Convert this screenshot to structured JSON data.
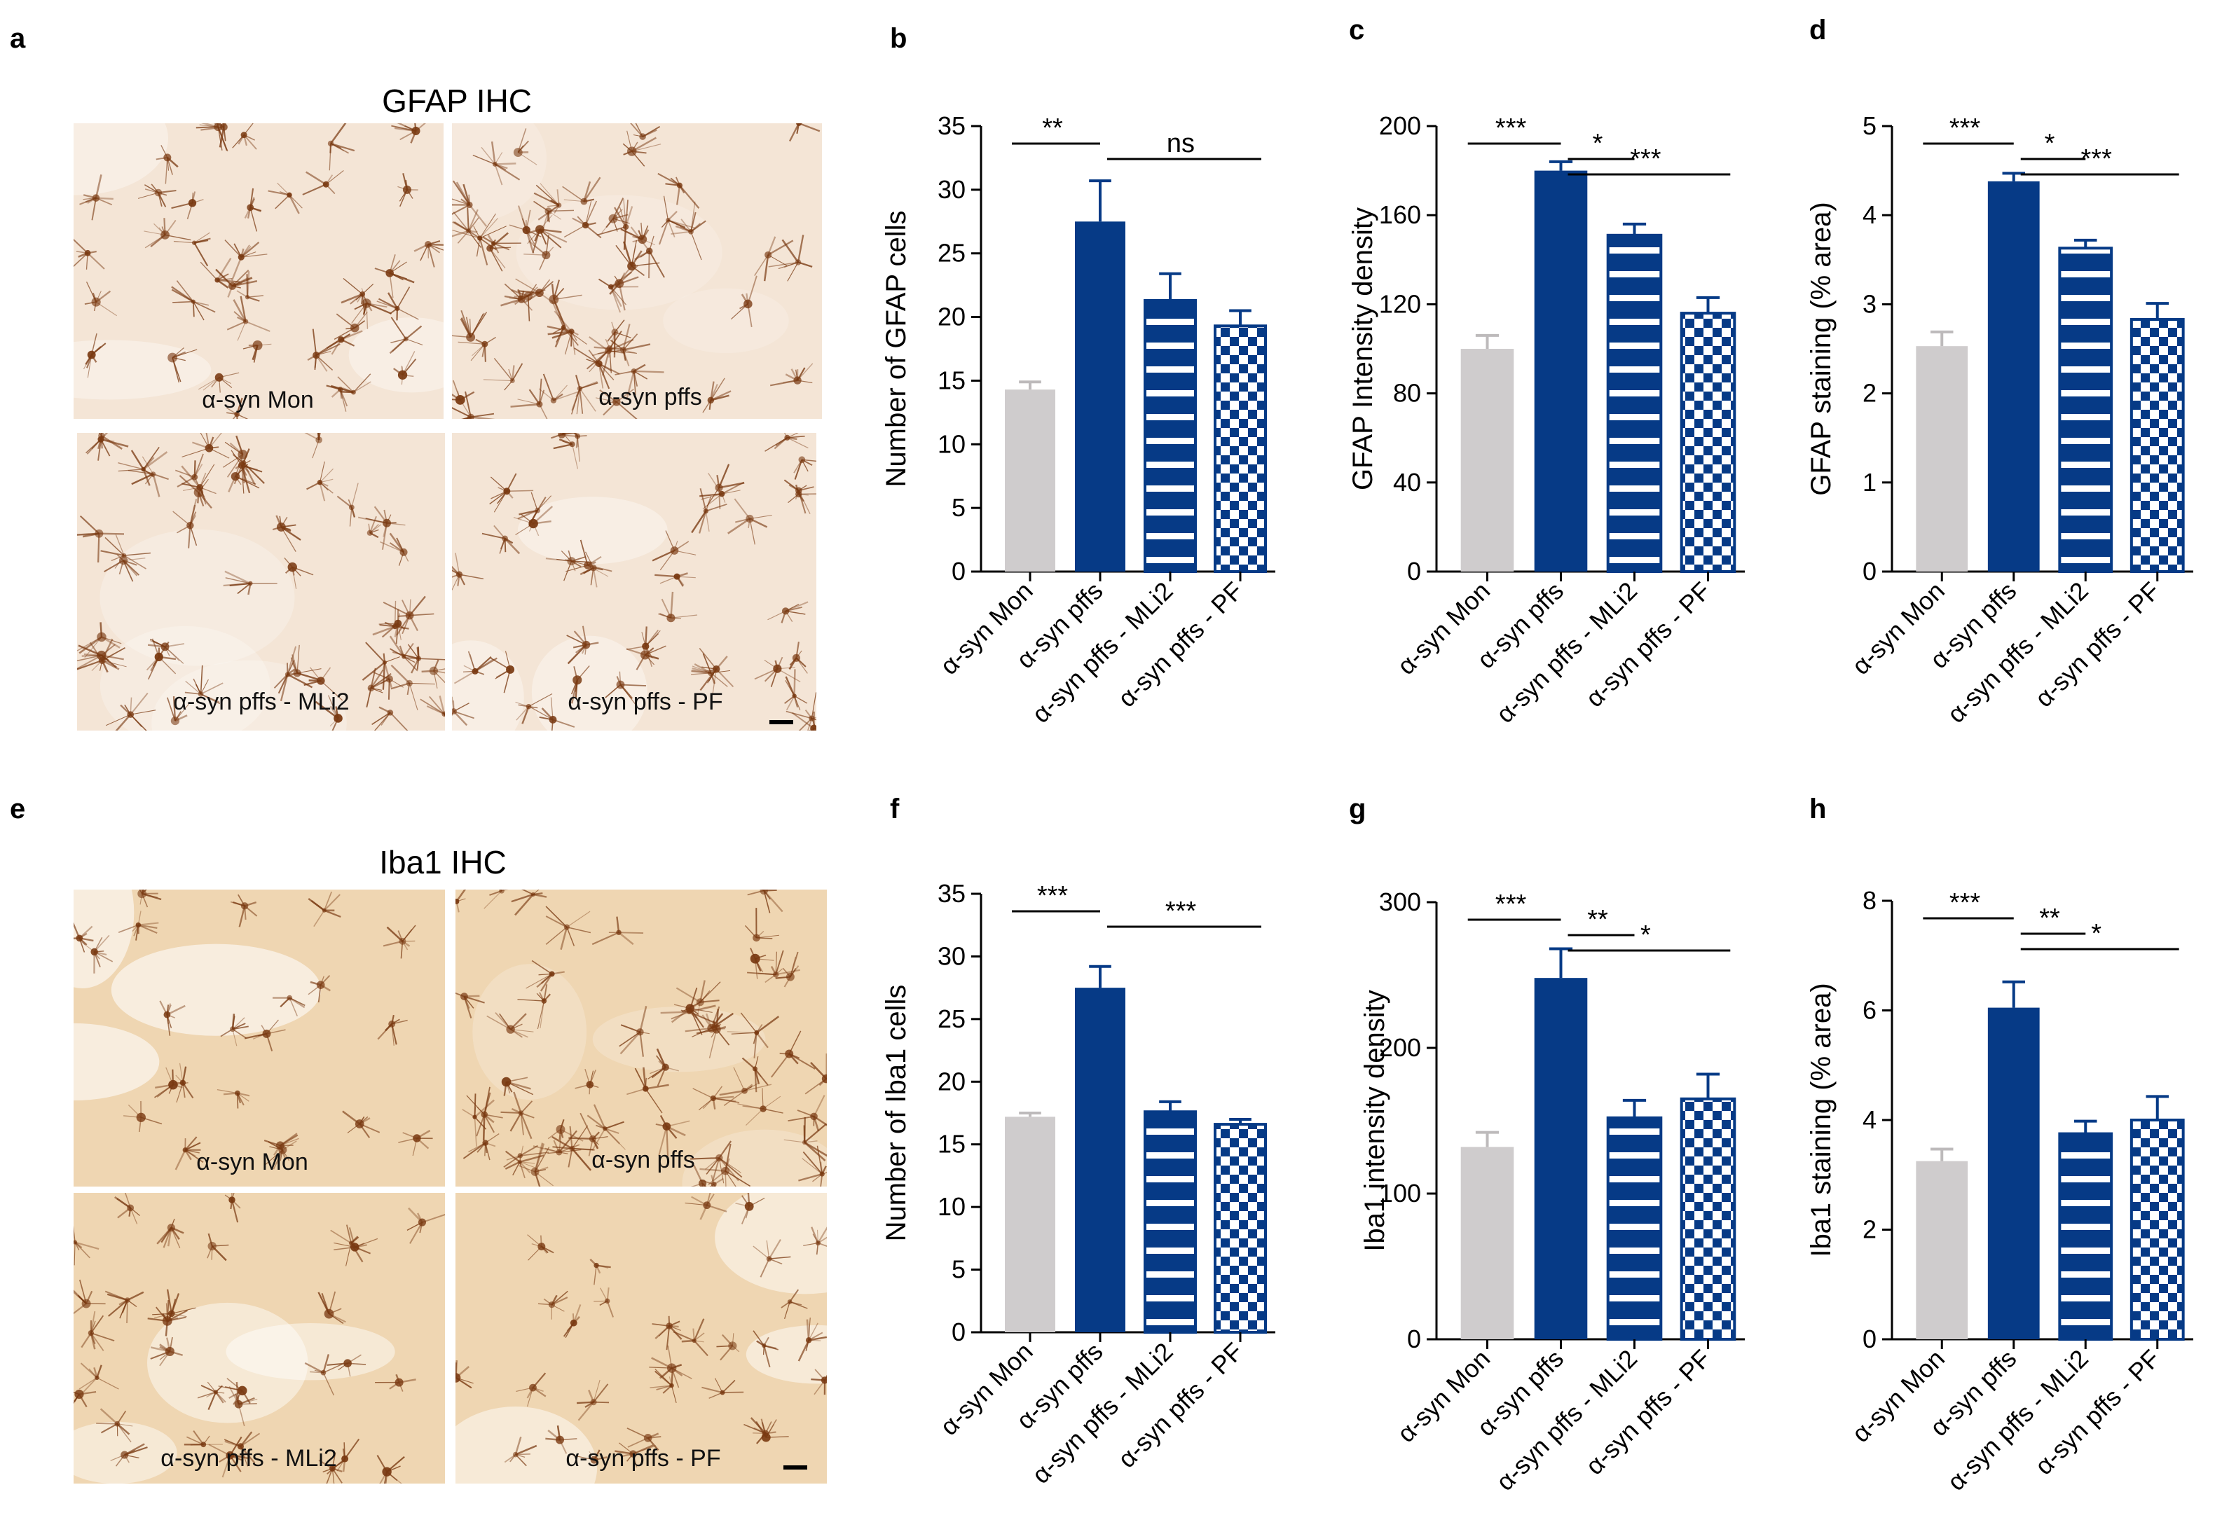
{
  "panel_labels": [
    "a",
    "b",
    "c",
    "d",
    "e",
    "f",
    "g",
    "h"
  ],
  "micrographs": [
    {
      "title": "GFAP IHC",
      "tiles": [
        "α-syn Mon",
        "α-syn pffs",
        "α-syn pffs - MLi2",
        "α-syn pffs - PF"
      ],
      "density": [
        0.55,
        0.85,
        0.75,
        0.55
      ]
    },
    {
      "title": "Iba1 IHC",
      "tiles": [
        "α-syn Mon",
        "α-syn pffs",
        "α-syn pffs - MLi2",
        "α-syn pffs - PF"
      ],
      "density": [
        0.15,
        0.8,
        0.35,
        0.3
      ]
    }
  ],
  "colors": {
    "control_gray": "#cfcccd",
    "pffs_blue": "#063a86",
    "ihc_gfap_bg": "#f4e5d6",
    "ihc_iba1_bg": "#efd6b2",
    "ihc_cell": "#7a3a12"
  },
  "chart_data": [
    {
      "panel": "b",
      "type": "bar",
      "categories": [
        "α-syn Mon",
        "α-syn pffs",
        "α-syn pffs - MLi2",
        "α-syn pffs - PF"
      ],
      "values": [
        14.3,
        27.5,
        21.3,
        19.3
      ],
      "errors": [
        0.6,
        3.2,
        2.1,
        1.2
      ],
      "patterns": [
        "gray",
        "solid",
        "stripes",
        "checker"
      ],
      "ylabel": "Number of GFAP cells",
      "ylim": [
        0,
        35
      ],
      "yticks": [
        0,
        5,
        10,
        15,
        20,
        25,
        30,
        35
      ],
      "ytick_labels": [
        "0",
        "5",
        "10",
        "15",
        "20",
        "25",
        "30",
        "35"
      ],
      "significance": [
        {
          "from": 0,
          "to": 1,
          "label": "**",
          "level": 0
        },
        {
          "from": 1,
          "to": 3,
          "label": "ns",
          "level": 1
        }
      ]
    },
    {
      "panel": "c",
      "type": "bar",
      "categories": [
        "α-syn Mon",
        "α-syn pffs",
        "α-syn pffs - MLi2",
        "α-syn pffs - PF"
      ],
      "values": [
        100,
        180,
        151,
        116
      ],
      "errors": [
        6,
        4,
        5,
        7
      ],
      "patterns": [
        "gray",
        "solid",
        "stripes",
        "checker"
      ],
      "ylabel": "GFAP Intensity density",
      "ylim": [
        0,
        200
      ],
      "yticks": [
        0,
        40,
        80,
        120,
        160,
        200
      ],
      "ytick_labels": [
        "0",
        "40",
        "80",
        "120",
        "160",
        "200"
      ],
      "significance": [
        {
          "from": 0,
          "to": 1,
          "label": "***",
          "level": 0
        },
        {
          "from": 1,
          "to": 2,
          "label": "*",
          "level": 1
        },
        {
          "from": 1,
          "to": 3,
          "label": "***",
          "level": 2
        }
      ]
    },
    {
      "panel": "d",
      "type": "bar",
      "categories": [
        "α-syn Mon",
        "α-syn pffs",
        "α-syn pffs - MLi2",
        "α-syn pffs - PF"
      ],
      "values": [
        2.53,
        4.38,
        3.63,
        2.83
      ],
      "errors": [
        0.16,
        0.09,
        0.09,
        0.18
      ],
      "patterns": [
        "gray",
        "solid",
        "stripes",
        "checker"
      ],
      "ylabel": "GFAP staining (% area)",
      "ylim": [
        0,
        5
      ],
      "yticks": [
        0,
        1,
        2,
        3,
        4,
        5
      ],
      "ytick_labels": [
        "0",
        "1",
        "2",
        "3",
        "4",
        "5"
      ],
      "significance": [
        {
          "from": 0,
          "to": 1,
          "label": "***",
          "level": 0
        },
        {
          "from": 1,
          "to": 2,
          "label": "*",
          "level": 1
        },
        {
          "from": 1,
          "to": 3,
          "label": "***",
          "level": 2
        }
      ]
    },
    {
      "panel": "f",
      "type": "bar",
      "categories": [
        "α-syn Mon",
        "α-syn pffs",
        "α-syn pffs - MLi2",
        "α-syn pffs - PF"
      ],
      "values": [
        17.2,
        27.5,
        17.6,
        16.6
      ],
      "errors": [
        0.3,
        1.7,
        0.8,
        0.4
      ],
      "patterns": [
        "gray",
        "solid",
        "stripes",
        "checker"
      ],
      "ylabel": "Number of Iba1 cells",
      "ylim": [
        0,
        35
      ],
      "yticks": [
        0,
        5,
        10,
        15,
        20,
        25,
        30,
        35
      ],
      "ytick_labels": [
        "0",
        "5",
        "10",
        "15",
        "20",
        "25",
        "30",
        "35"
      ],
      "significance": [
        {
          "from": 0,
          "to": 1,
          "label": "***",
          "level": 0
        },
        {
          "from": 1,
          "to": 3,
          "label": "***",
          "level": 1
        }
      ]
    },
    {
      "panel": "g",
      "type": "bar",
      "categories": [
        "α-syn Mon",
        "α-syn pffs",
        "α-syn pffs - MLi2",
        "α-syn pffs - PF"
      ],
      "values": [
        132,
        248,
        152,
        165
      ],
      "errors": [
        10,
        20,
        12,
        17
      ],
      "patterns": [
        "gray",
        "solid",
        "stripes",
        "checker"
      ],
      "ylabel": "Iba1 intensity density",
      "ylim": [
        0,
        300
      ],
      "yticks": [
        0,
        100,
        200,
        300
      ],
      "ytick_labels": [
        "0",
        "100",
        "200",
        "300"
      ],
      "significance": [
        {
          "from": 0,
          "to": 1,
          "label": "***",
          "level": 0
        },
        {
          "from": 1,
          "to": 2,
          "label": "**",
          "level": 1
        },
        {
          "from": 1,
          "to": 3,
          "label": "*",
          "level": 2
        }
      ]
    },
    {
      "panel": "h",
      "type": "bar",
      "categories": [
        "α-syn Mon",
        "α-syn pffs",
        "α-syn pffs - MLi2",
        "α-syn pffs - PF"
      ],
      "values": [
        3.25,
        6.05,
        3.75,
        4.0
      ],
      "errors": [
        0.22,
        0.47,
        0.23,
        0.43
      ],
      "patterns": [
        "gray",
        "solid",
        "stripes",
        "checker"
      ],
      "ylabel": "Iba1 staining (% area)",
      "ylim": [
        0,
        8
      ],
      "yticks": [
        0,
        2,
        4,
        6,
        8
      ],
      "ytick_labels": [
        "0",
        "2",
        "4",
        "6",
        "8"
      ],
      "significance": [
        {
          "from": 0,
          "to": 1,
          "label": "***",
          "level": 0
        },
        {
          "from": 1,
          "to": 2,
          "label": "**",
          "level": 1
        },
        {
          "from": 1,
          "to": 3,
          "label": "*",
          "level": 2
        }
      ]
    }
  ]
}
